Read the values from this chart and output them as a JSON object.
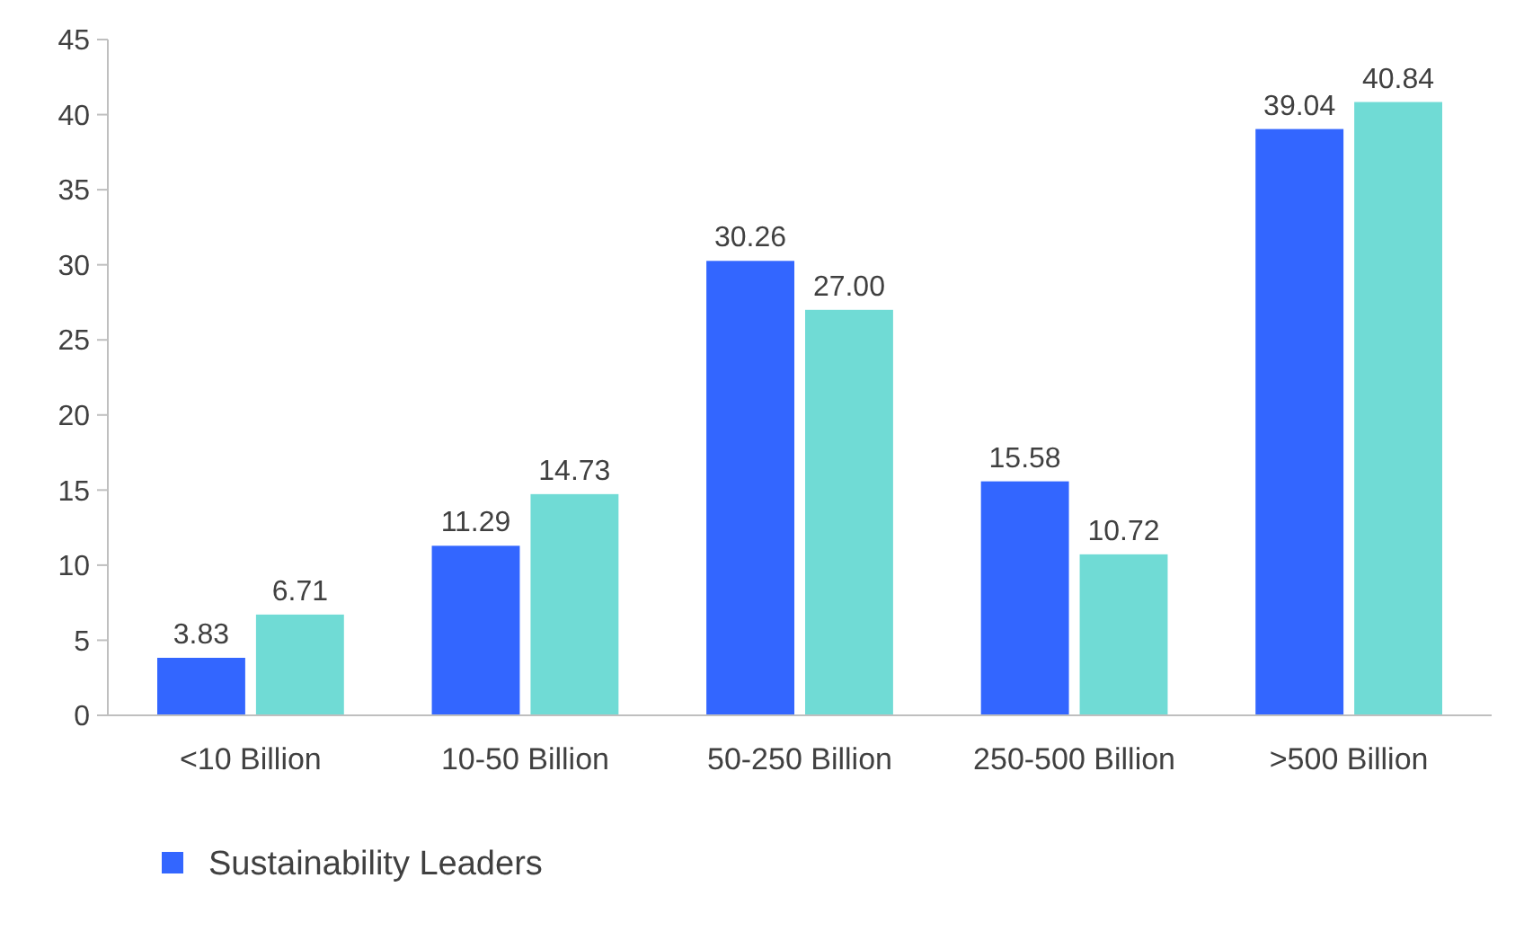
{
  "chart_data": {
    "type": "bar",
    "categories": [
      "<10 Billion",
      "10-50 Billion",
      "50-250 Billion",
      "250-500 Billion",
      ">500 Billion"
    ],
    "series": [
      {
        "name": "Sustainability Leaders",
        "color": "#3366ff",
        "values": [
          3.83,
          11.29,
          30.26,
          15.58,
          39.04
        ],
        "value_labels": [
          "3.83",
          "11.29",
          "30.26",
          "15.58",
          "39.04"
        ]
      },
      {
        "color": "#70dbd5",
        "values": [
          6.71,
          14.73,
          27.0,
          10.72,
          40.84
        ],
        "value_labels": [
          "6.71",
          "14.73",
          "27.00",
          "10.72",
          "40.84"
        ]
      }
    ],
    "ylim": [
      0,
      45
    ],
    "yticks": [
      0,
      5,
      10,
      15,
      20,
      25,
      30,
      35,
      40,
      45
    ],
    "legend": "bottom"
  }
}
